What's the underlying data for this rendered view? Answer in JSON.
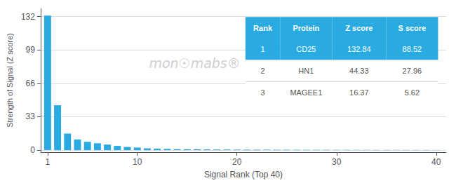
{
  "chart_data": {
    "type": "bar",
    "xlabel": "Signal Rank (Top 40)",
    "ylabel": "Strength of Signal (Z score)",
    "x": [
      1,
      2,
      3,
      4,
      5,
      6,
      7,
      8,
      9,
      10,
      11,
      12,
      13,
      14,
      15,
      16,
      17,
      18,
      19,
      20,
      21,
      22,
      23,
      24,
      25,
      26,
      27,
      28,
      29,
      30,
      31,
      32,
      33,
      34,
      35,
      36,
      37,
      38,
      39,
      40
    ],
    "values": [
      132.84,
      44.33,
      16.37,
      10.5,
      8.2,
      6.8,
      5.5,
      4.2,
      3.1,
      2.5,
      1.8,
      1.5,
      1.2,
      1.0,
      0.9,
      0.8,
      0.7,
      0.65,
      0.6,
      0.55,
      0.5,
      0.48,
      0.45,
      0.42,
      0.4,
      0.38,
      0.36,
      0.34,
      0.32,
      0.3,
      0.28,
      0.27,
      0.26,
      0.25,
      0.24,
      0.23,
      0.22,
      0.21,
      0.2,
      0.19
    ],
    "color": "#29ABE2",
    "xlim": [
      0.3,
      41
    ],
    "xticks": [
      1,
      10,
      20,
      30,
      40
    ],
    "ylim": [
      -2,
      140
    ],
    "yticks": [
      0,
      33,
      66,
      99,
      132
    ],
    "grid": true,
    "annotations": [
      {
        "text": "mon☉mabs®"
      }
    ],
    "table": {
      "columns": [
        "Rank",
        "Protein",
        "Z score",
        "S score"
      ],
      "rows": [
        [
          "1",
          "CD25",
          "132.84",
          "88.52"
        ],
        [
          "2",
          "HN1",
          "44.33",
          "27.96"
        ],
        [
          "3",
          "MAGEE1",
          "16.37",
          "5.62"
        ]
      ]
    }
  }
}
